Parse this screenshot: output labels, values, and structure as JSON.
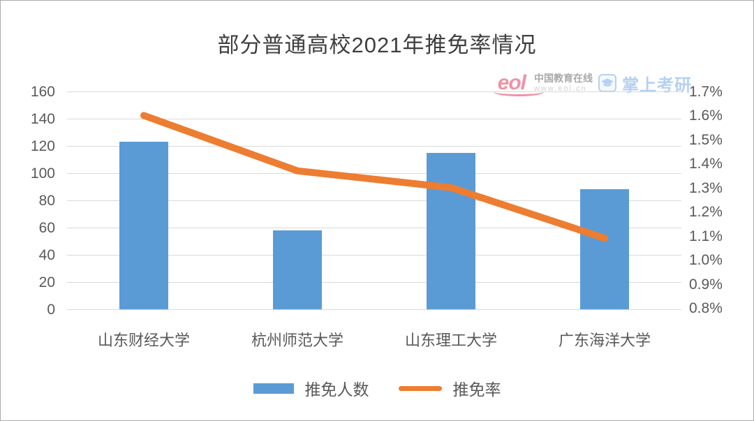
{
  "frame": {
    "background": "#ffffff",
    "border_color": "#ababab"
  },
  "title": "部分普通高校2021年推免率情况",
  "watermark": {
    "logo_text": "eol",
    "brand_name": "中国教育在线",
    "brand_url": "www.eol.cn",
    "app_name": "掌上考研",
    "logo_color": "#ee7f96",
    "brand_text_color": "#9b9b9b",
    "app_color": "#a9c8f0"
  },
  "chart_data": {
    "type": "bar",
    "subtype": "combo-bar-line-dual-axis",
    "title": "部分普通高校2021年推免率情况",
    "categories": [
      "山东财经大学",
      "杭州师范大学",
      "山东理工大学",
      "广东海洋大学"
    ],
    "series": [
      {
        "name": "推免人数",
        "type": "bar",
        "axis": "left",
        "color": "#5B9BD5",
        "values": [
          123,
          58,
          115,
          88
        ]
      },
      {
        "name": "推免率",
        "type": "line",
        "axis": "right",
        "color": "#ED7D31",
        "unit": "%",
        "values": [
          1.6,
          1.37,
          1.3,
          1.09
        ]
      }
    ],
    "left_axis": {
      "min": 0,
      "max": 160,
      "step": 20,
      "tick_labels": [
        "160",
        "140",
        "120",
        "100",
        "80",
        "60",
        "40",
        "20",
        "0"
      ]
    },
    "right_axis": {
      "min": 0.8,
      "max": 1.7,
      "step": 0.1,
      "tick_labels": [
        "1.7%",
        "1.6%",
        "1.5%",
        "1.4%",
        "1.3%",
        "1.2%",
        "1.1%",
        "1.0%",
        "0.9%",
        "0.8%"
      ]
    },
    "gridlines": true,
    "grid_color": "#d9d9d9",
    "text_color": "#595959",
    "legend_position": "bottom"
  }
}
